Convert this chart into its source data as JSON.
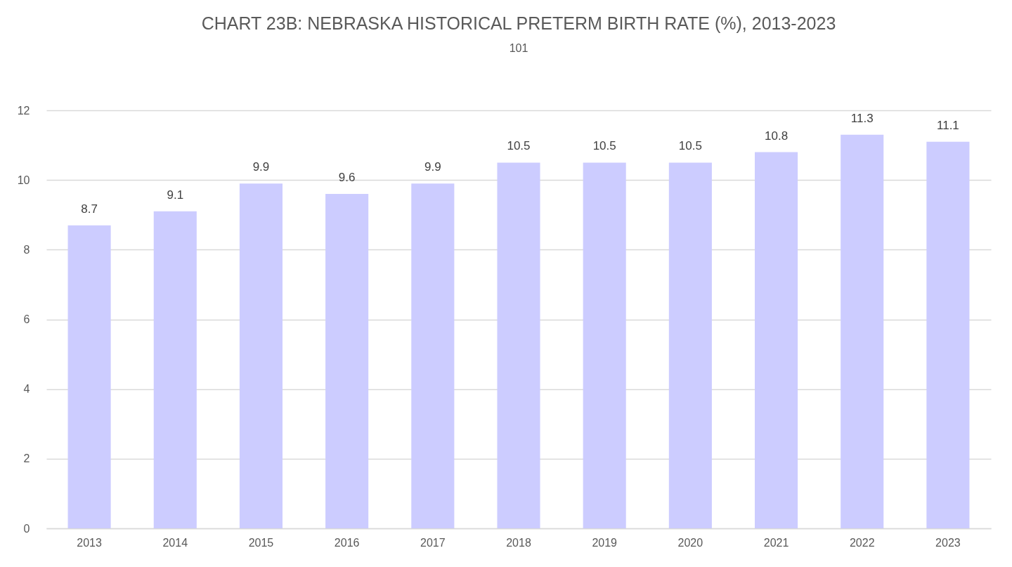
{
  "chart_data": {
    "type": "bar",
    "title": "CHART 23B: NEBRASKA HISTORICAL PRETERM BIRTH RATE (%), 2013-2023",
    "subtitle": "101",
    "categories": [
      "2013",
      "2014",
      "2015",
      "2016",
      "2017",
      "2018",
      "2019",
      "2020",
      "2021",
      "2022",
      "2023"
    ],
    "values": [
      8.7,
      9.1,
      9.9,
      9.6,
      9.9,
      10.5,
      10.5,
      10.5,
      10.8,
      11.3,
      11.1
    ],
    "color": "#ccccff",
    "ylim": [
      0,
      12
    ],
    "yticks": [
      0,
      2,
      4,
      6,
      8,
      10,
      12
    ],
    "grid": "y",
    "data_labels": true
  }
}
